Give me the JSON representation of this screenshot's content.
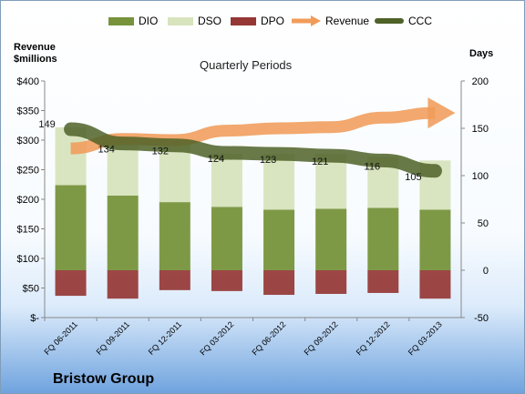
{
  "chart_data": {
    "type": "bar",
    "title": "Quarterly Periods",
    "left_axis_title": [
      "Revenue",
      "$millions"
    ],
    "right_axis_title": "Days",
    "left_ylim": [
      0,
      400
    ],
    "right_ylim": [
      -50,
      200
    ],
    "left_ticks": [
      "$-",
      "$50",
      "$100",
      "$150",
      "$200",
      "$250",
      "$300",
      "$350",
      "$400"
    ],
    "right_ticks": [
      "-50",
      "0",
      "50",
      "100",
      "150",
      "200"
    ],
    "categories": [
      "FQ 06-2011",
      "FQ 09-2011",
      "FQ 12-2011",
      "FQ 03-2012",
      "FQ 06-2012",
      "FQ 09-2012",
      "FQ 12-2012",
      "FQ 03-2013"
    ],
    "series": [
      {
        "name": "DIO",
        "axis": "right",
        "values": [
          90,
          79,
          72,
          67,
          64,
          65,
          66,
          64
        ],
        "color": "#77933c"
      },
      {
        "name": "DSO",
        "axis": "right",
        "values": [
          61,
          62,
          60,
          56,
          59,
          58,
          54,
          52
        ],
        "color": "#d7e4bd"
      },
      {
        "name": "DPO",
        "axis": "right",
        "values": [
          -27,
          -30,
          -21,
          -22,
          -26,
          -25,
          -24,
          -30
        ],
        "color": "#953735"
      },
      {
        "name": "Revenue",
        "axis": "left",
        "values": [
          286,
          302,
          300,
          316,
          320,
          322,
          338,
          346
        ],
        "color": "#f09c5a"
      },
      {
        "name": "CCC",
        "axis": "right",
        "values": [
          149,
          134,
          132,
          124,
          123,
          121,
          116,
          105
        ],
        "color": "#4f6228"
      }
    ],
    "legend_position": "top",
    "grid": false
  },
  "company_name": "Bristow Group"
}
